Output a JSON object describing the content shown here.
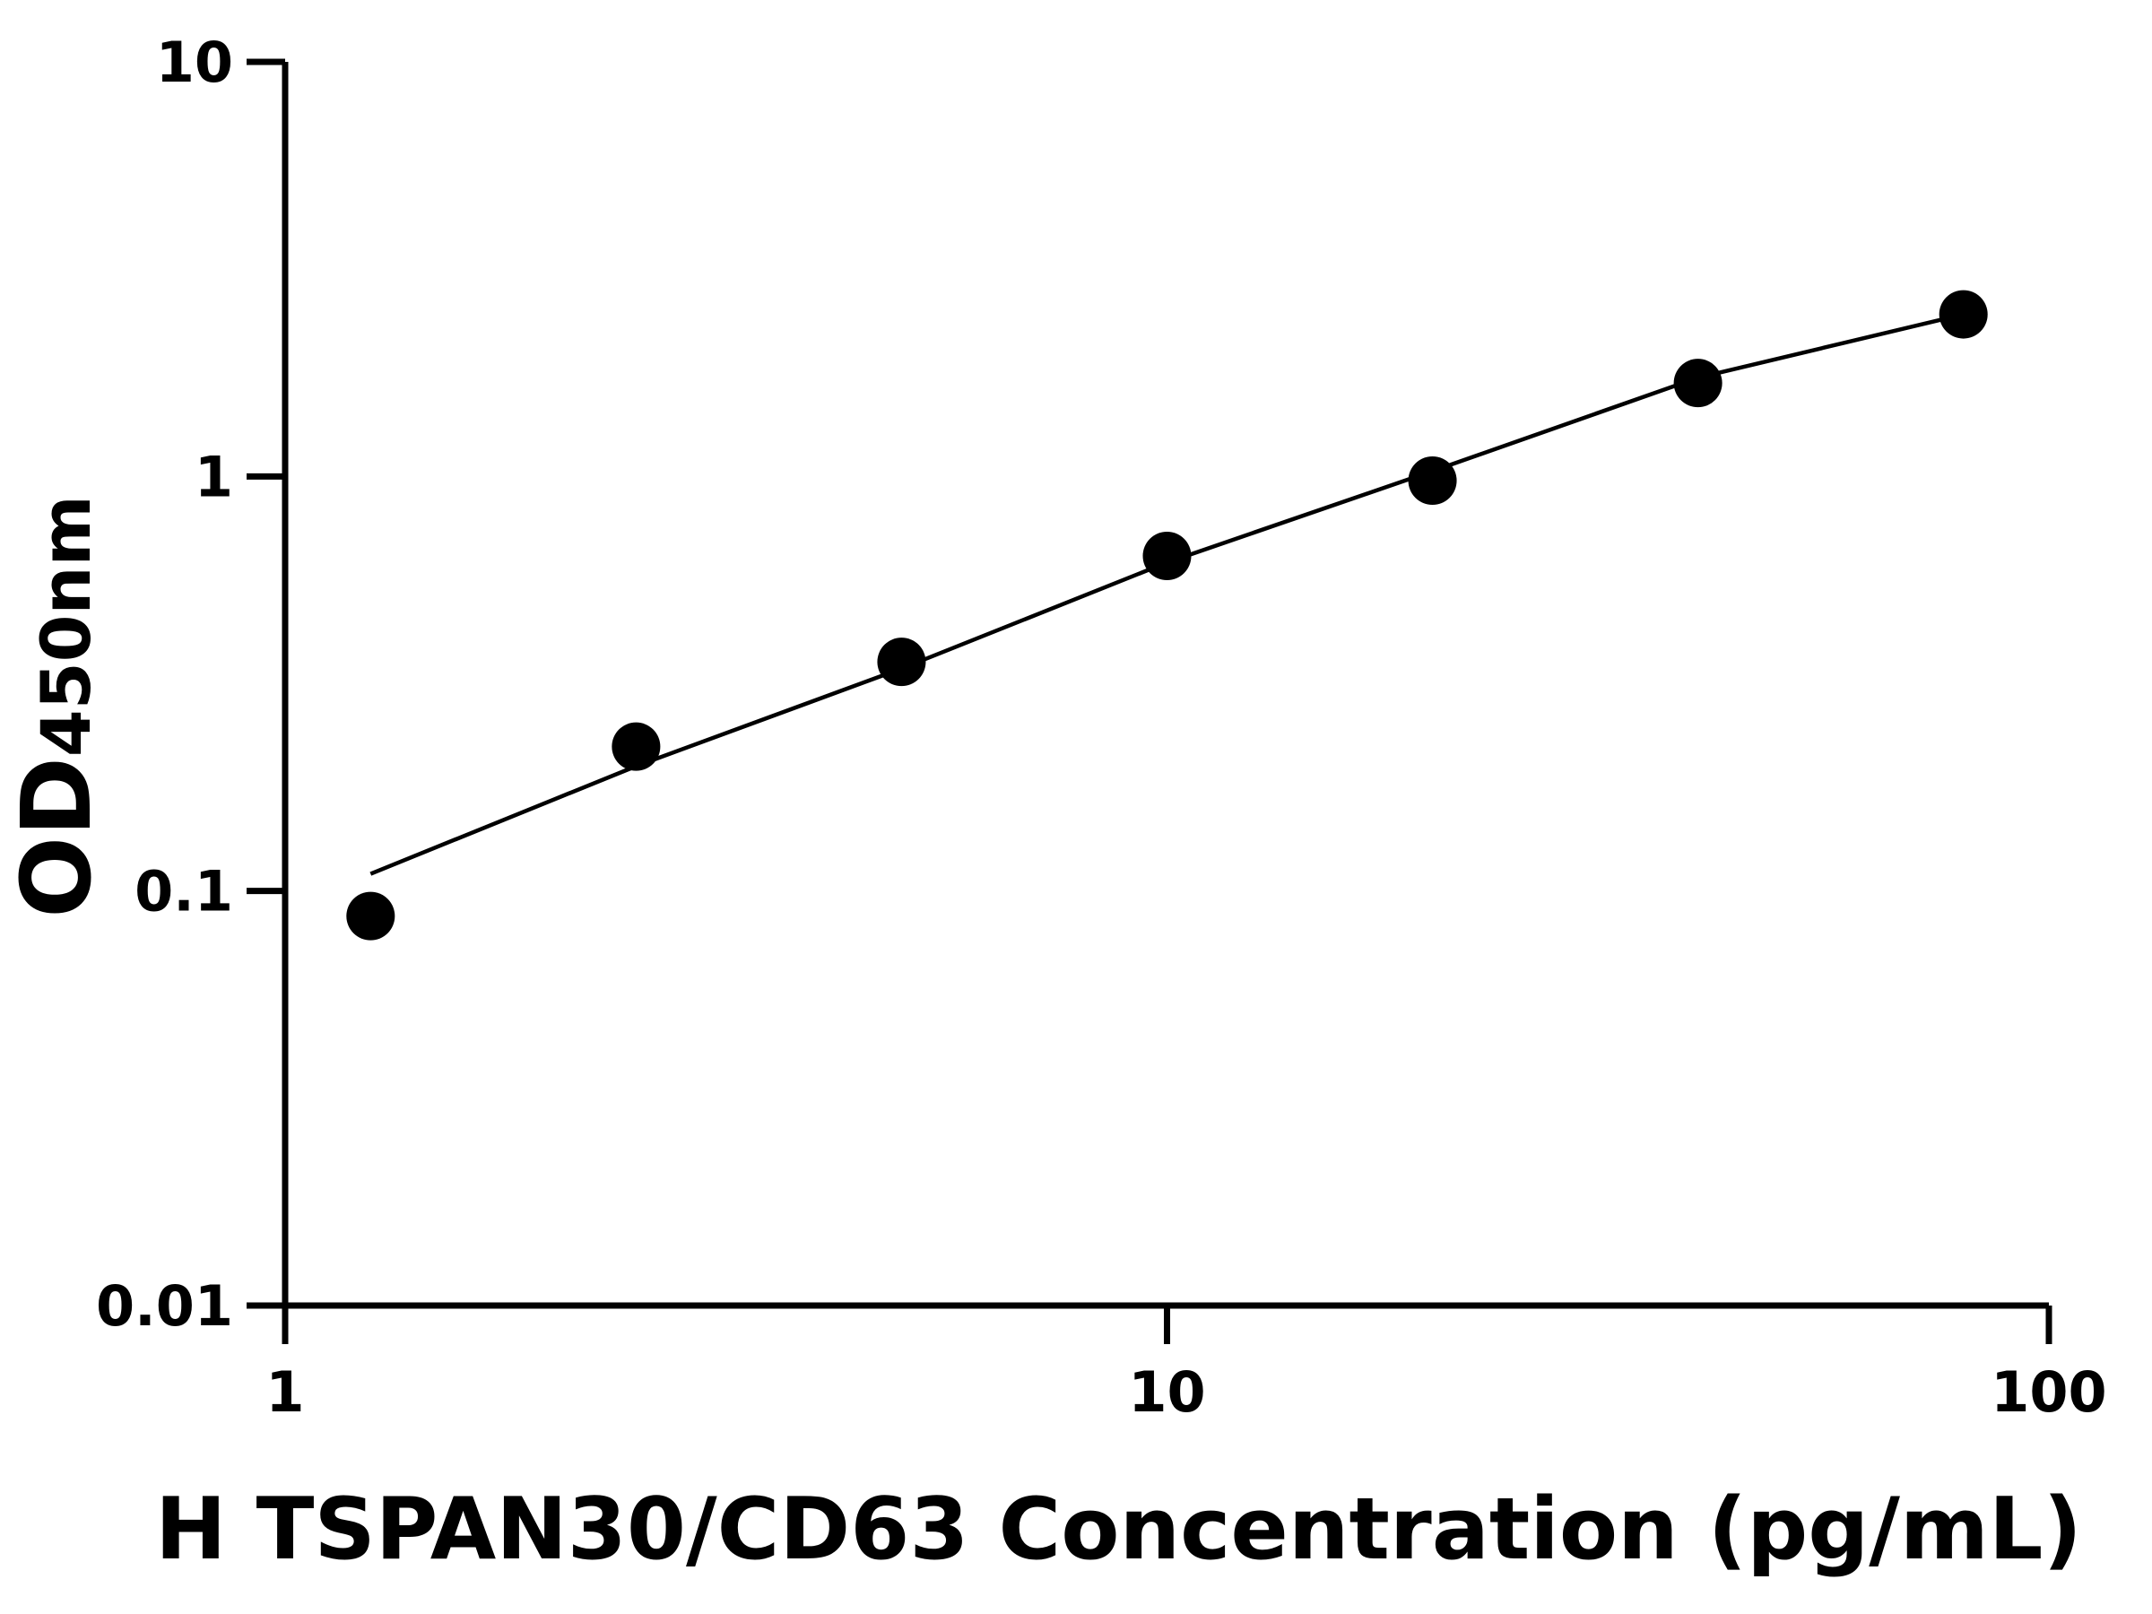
{
  "chart_data": {
    "type": "scatter",
    "xlabel": "H TSPAN30/CD63 Concentration (pg/mL)",
    "ylabel": "OD",
    "ylabel_sub": "450nm",
    "x": [
      1.25,
      2.5,
      5,
      10,
      20,
      40,
      80
    ],
    "values": [
      0.087,
      0.223,
      0.357,
      0.643,
      0.977,
      1.68,
      2.46
    ],
    "curve_x": [
      1.25,
      2.5,
      5,
      10,
      20,
      40,
      80
    ],
    "curve_values": [
      0.11,
      0.2,
      0.344,
      0.62,
      1.03,
      1.73,
      2.46
    ],
    "color": "#000000",
    "xlog": true,
    "ylog": true,
    "xlim": [
      1,
      100
    ],
    "ylim": [
      0.01,
      10
    ],
    "xticks": [
      1,
      10,
      100
    ],
    "yticks": [
      0.01,
      0.1,
      1,
      10
    ]
  }
}
